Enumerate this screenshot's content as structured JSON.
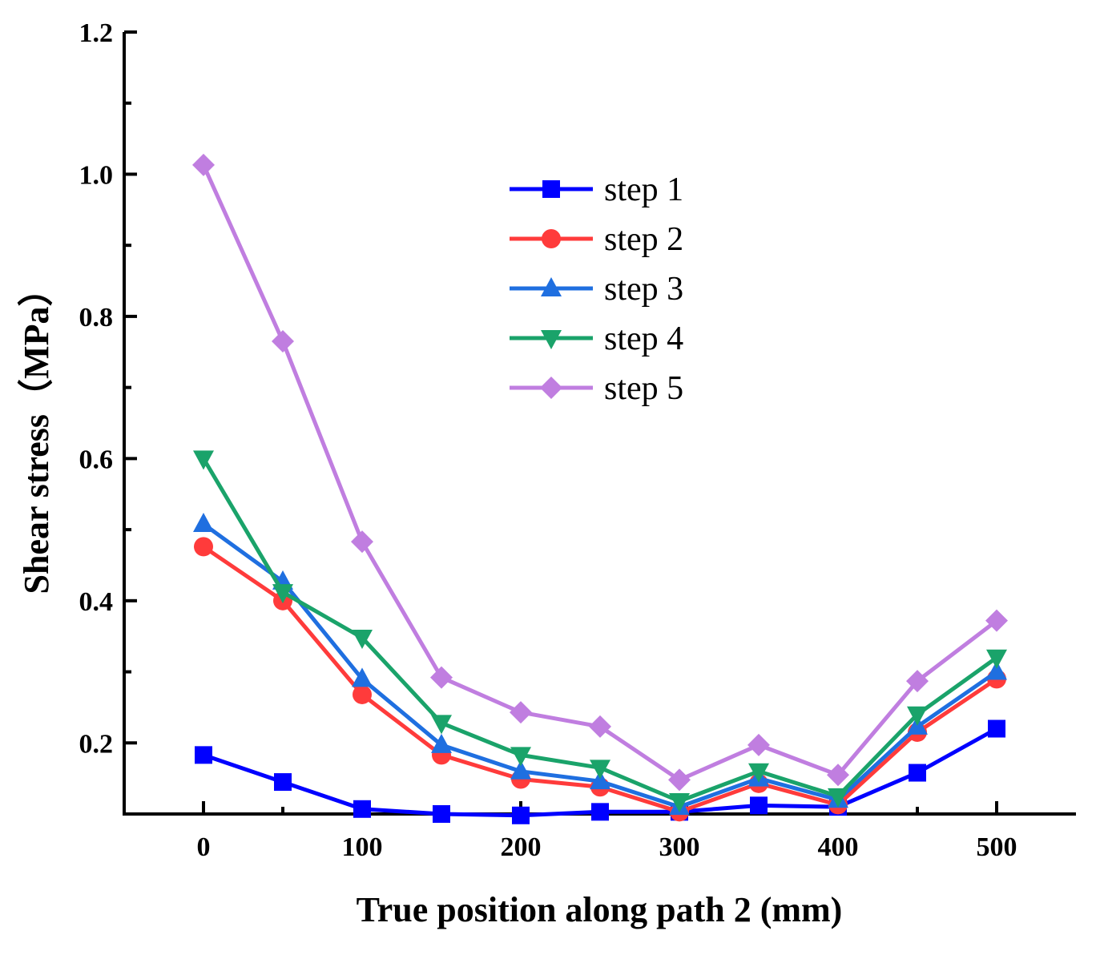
{
  "chart_data": {
    "type": "line",
    "title": "",
    "xlabel": "True position along path 2 (mm)",
    "ylabel": "Shear stress（MPa）",
    "xlim": [
      -50,
      550
    ],
    "ylim": [
      0.1,
      1.2
    ],
    "x_ticks": [
      {
        "value": 0,
        "label": "0"
      },
      {
        "value": 100,
        "label": "100"
      },
      {
        "value": 200,
        "label": "200"
      },
      {
        "value": 300,
        "label": "300"
      },
      {
        "value": 400,
        "label": "400"
      },
      {
        "value": 500,
        "label": "500"
      }
    ],
    "y_ticks": [
      {
        "value": 0.2,
        "label": "0.2"
      },
      {
        "value": 0.4,
        "label": "0.4"
      },
      {
        "value": 0.6,
        "label": "0.6"
      },
      {
        "value": 0.8,
        "label": "0.8"
      },
      {
        "value": 1.0,
        "label": "1.0"
      },
      {
        "value": 1.2,
        "label": "1.2"
      }
    ],
    "grid": false,
    "legend_position": "upper-center",
    "x": [
      0,
      50,
      100,
      150,
      200,
      250,
      300,
      350,
      400,
      450,
      500
    ],
    "series": [
      {
        "name": "step 1",
        "color": "#0000ff",
        "marker": "square",
        "values": [
          0.183,
          0.145,
          0.107,
          0.1,
          0.098,
          0.103,
          0.103,
          0.112,
          0.11,
          0.158,
          0.22
        ]
      },
      {
        "name": "step 2",
        "color": "#ff3b3b",
        "marker": "circle",
        "values": [
          0.476,
          0.4,
          0.268,
          0.183,
          0.149,
          0.138,
          0.103,
          0.143,
          0.113,
          0.215,
          0.29
        ]
      },
      {
        "name": "step 3",
        "color": "#1f6fe0",
        "marker": "triangle-up",
        "values": [
          0.508,
          0.427,
          0.29,
          0.197,
          0.16,
          0.146,
          0.11,
          0.15,
          0.12,
          0.223,
          0.3
        ]
      },
      {
        "name": "step 4",
        "color": "#1aa36a",
        "marker": "triangle-down",
        "values": [
          0.6,
          0.412,
          0.348,
          0.228,
          0.183,
          0.165,
          0.118,
          0.16,
          0.125,
          0.24,
          0.32
        ]
      },
      {
        "name": "step 5",
        "color": "#c07ee0",
        "marker": "diamond",
        "values": [
          1.013,
          0.765,
          0.483,
          0.292,
          0.243,
          0.223,
          0.148,
          0.197,
          0.155,
          0.287,
          0.372
        ]
      }
    ]
  }
}
